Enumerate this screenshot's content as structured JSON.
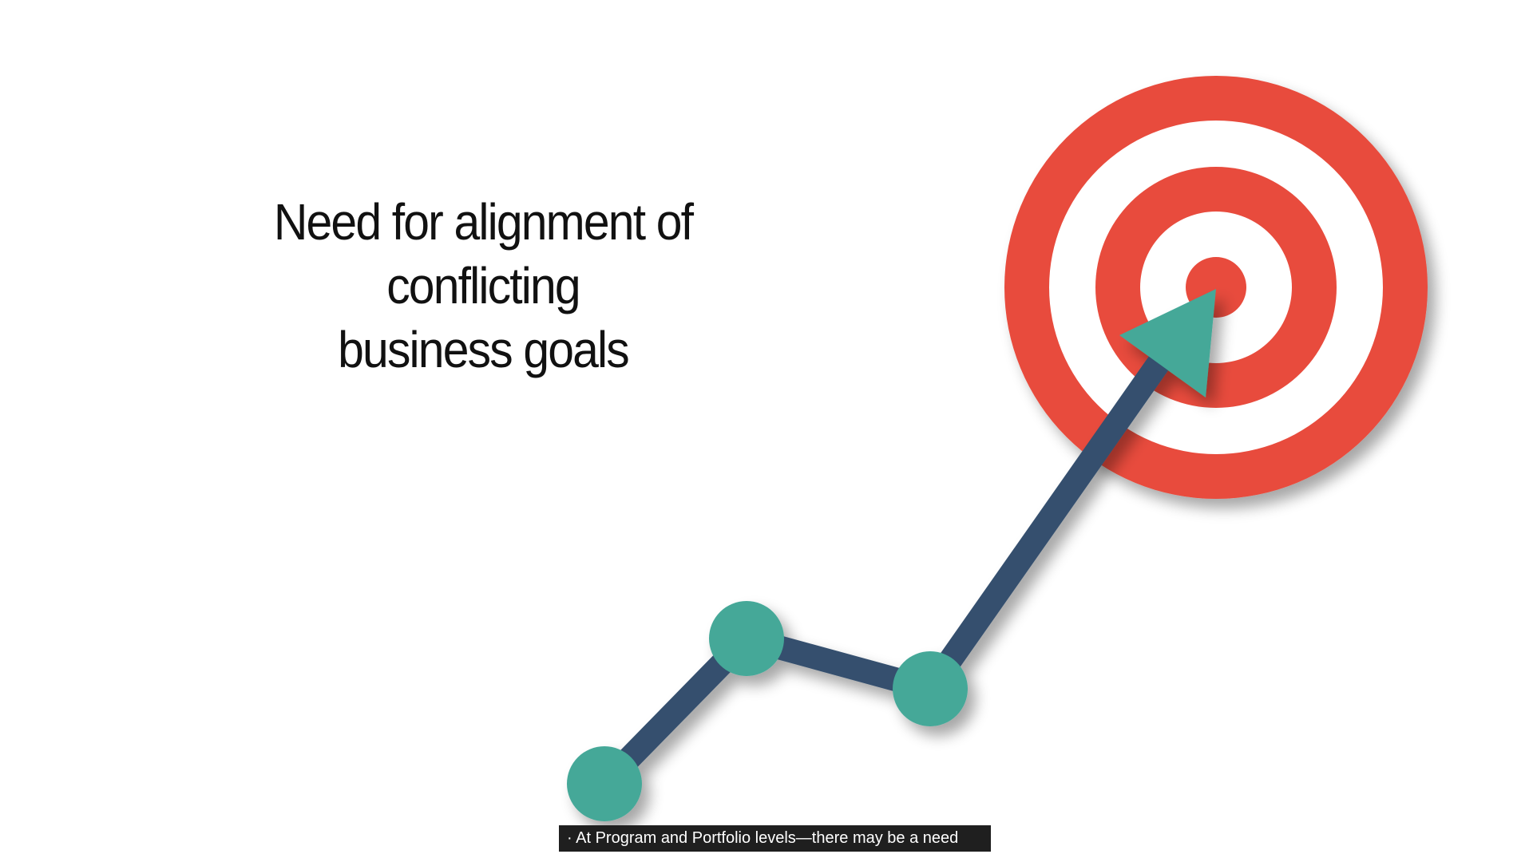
{
  "slide": {
    "title_line1": "Need for alignment of conflicting",
    "title_line2": "business goals"
  },
  "graphic": {
    "icon": "target-arrow-growth-icon",
    "colors": {
      "target_red": "#E84B3C",
      "target_white": "#FFFFFF",
      "line_navy": "#34506E",
      "node_teal": "#45A898"
    }
  },
  "caption": {
    "text": "· At Program and Portfolio levels—there may be a need"
  }
}
